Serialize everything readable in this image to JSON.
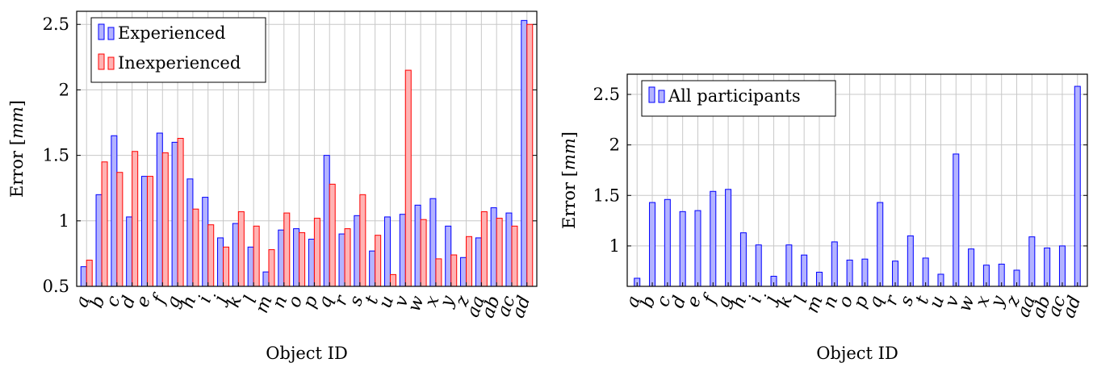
{
  "chart_data": [
    {
      "type": "bar",
      "xlabel": "Object ID",
      "ylabel": "Error [mm]",
      "ylabel_unit": "mm",
      "ylim": [
        0.5,
        2.6
      ],
      "yticks": [
        0.5,
        1,
        1.5,
        2,
        2.5
      ],
      "ytick_labels": [
        "0.5",
        "1",
        "1.5",
        "2",
        "2.5"
      ],
      "grid": true,
      "legend_position": "top-left",
      "categories": [
        "a",
        "b",
        "c",
        "d",
        "e",
        "f",
        "g",
        "h",
        "i",
        "j",
        "k",
        "l",
        "m",
        "n",
        "o",
        "p",
        "q",
        "r",
        "s",
        "t",
        "u",
        "v",
        "w",
        "x",
        "y",
        "z",
        "aa",
        "ab",
        "ac",
        "ad"
      ],
      "series": [
        {
          "name": "Experienced",
          "color": "#b3b3ff",
          "stroke": "#0000ff",
          "values": [
            0.65,
            1.2,
            1.65,
            1.03,
            1.34,
            1.67,
            1.6,
            1.32,
            1.18,
            0.87,
            0.98,
            0.8,
            0.61,
            0.93,
            0.94,
            0.86,
            1.5,
            0.9,
            1.04,
            0.77,
            1.03,
            1.05,
            1.12,
            1.17,
            0.96,
            0.72,
            0.87,
            1.1,
            1.06,
            2.53
          ]
        },
        {
          "name": "Inexperienced",
          "color": "#ffb3b3",
          "stroke": "#ff0000",
          "values": [
            0.7,
            1.45,
            1.37,
            1.53,
            1.34,
            1.52,
            1.63,
            1.09,
            0.97,
            0.8,
            1.07,
            0.96,
            0.78,
            1.06,
            0.91,
            1.02,
            1.28,
            0.94,
            1.2,
            0.89,
            0.59,
            2.15,
            1.01,
            0.71,
            0.74,
            0.88,
            1.07,
            1.02,
            0.96,
            2.5
          ]
        }
      ]
    },
    {
      "type": "bar",
      "xlabel": "Object ID",
      "ylabel": "Error [mm]",
      "ylabel_unit": "mm",
      "ylim": [
        0.6,
        2.7
      ],
      "yticks": [
        1,
        1.5,
        2,
        2.5
      ],
      "ytick_labels": [
        "1",
        "1.5",
        "2",
        "2.5"
      ],
      "grid": true,
      "legend_position": "top-left",
      "categories": [
        "a",
        "b",
        "c",
        "d",
        "e",
        "f",
        "g",
        "h",
        "i",
        "j",
        "k",
        "l",
        "m",
        "n",
        "o",
        "p",
        "q",
        "r",
        "s",
        "t",
        "u",
        "v",
        "w",
        "x",
        "y",
        "z",
        "aa",
        "ab",
        "ac",
        "ad"
      ],
      "series": [
        {
          "name": "All participants",
          "color": "#b3b3ff",
          "stroke": "#0000ff",
          "values": [
            0.68,
            1.43,
            1.46,
            1.34,
            1.35,
            1.54,
            1.56,
            1.13,
            1.01,
            0.7,
            1.01,
            0.91,
            0.74,
            1.04,
            0.86,
            0.87,
            1.43,
            0.85,
            1.1,
            0.88,
            0.72,
            1.91,
            0.97,
            0.81,
            0.82,
            0.76,
            1.09,
            0.98,
            1.0,
            2.58
          ]
        }
      ]
    }
  ]
}
